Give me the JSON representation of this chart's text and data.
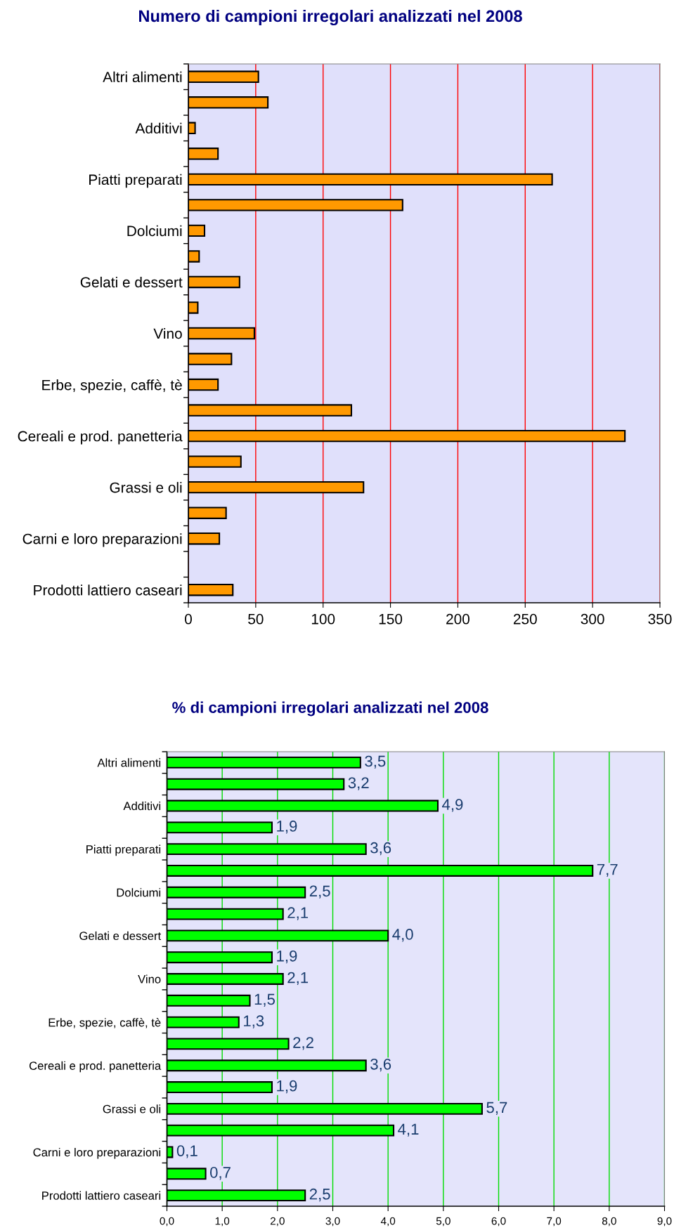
{
  "chart_data": [
    {
      "type": "bar",
      "orientation": "horizontal",
      "title": "Numero di campioni irregolari analizzati nel 2008",
      "categories": [
        "Altri alimenti",
        null,
        "Additivi",
        null,
        "Piatti preparati",
        null,
        "Dolciumi",
        null,
        "Gelati e dessert",
        null,
        "Vino",
        null,
        "Erbe, spezie, caffè, tè",
        null,
        "Cereali e prod. panetteria",
        null,
        "Grassi e oli",
        null,
        "Carni e loro preparazioni",
        null,
        "Prodotti lattiero caseari"
      ],
      "values": [
        52,
        59,
        5,
        22,
        270,
        159,
        12,
        8,
        38,
        7,
        49,
        32,
        22,
        121,
        324,
        39,
        130,
        28,
        23,
        null,
        33
      ],
      "color": "#ff9900",
      "xlim": [
        0,
        350
      ],
      "xticks": [
        0,
        50,
        100,
        150,
        200,
        250,
        300,
        350
      ],
      "grid": "x"
    },
    {
      "type": "bar",
      "orientation": "horizontal",
      "title": "% di campioni irregolari analizzati nel 2008",
      "categories": [
        "Altri alimenti",
        null,
        "Additivi",
        null,
        "Piatti preparati",
        null,
        "Dolciumi",
        null,
        "Gelati e dessert",
        null,
        "Vino",
        null,
        "Erbe, spezie, caffè, tè",
        null,
        "Cereali e prod. panetteria",
        null,
        "Grassi e oli",
        null,
        "Carni e loro preparazioni",
        null,
        "Prodotti lattiero caseari"
      ],
      "values": [
        3.5,
        3.2,
        4.9,
        1.9,
        3.6,
        7.7,
        2.5,
        2.1,
        4.0,
        1.9,
        2.1,
        1.5,
        1.3,
        2.2,
        3.6,
        1.9,
        5.7,
        4.1,
        0.1,
        0.7,
        2.5
      ],
      "value_labels": [
        "3,5",
        "3,2",
        "4,9",
        "1,9",
        "3,6",
        "7,7",
        "2,5",
        "2,1",
        "4,0",
        "1,9",
        "2,1",
        "1,5",
        "1,3",
        "2,2",
        "3,6",
        "1,9",
        "5,7",
        "4,1",
        "0,1",
        "0,7",
        "2,5"
      ],
      "color": "#00ff00",
      "xlim": [
        0,
        9
      ],
      "xticks": [
        {
          "value": 0,
          "label": "0,0"
        },
        {
          "value": 1,
          "label": "1,0"
        },
        {
          "value": 2,
          "label": "2,0"
        },
        {
          "value": 3,
          "label": "3,0"
        },
        {
          "value": 4,
          "label": "4,0"
        },
        {
          "value": 5,
          "label": "5,0"
        },
        {
          "value": 6,
          "label": "6,0"
        },
        {
          "value": 7,
          "label": "7,0"
        },
        {
          "value": 8,
          "label": "8,0"
        },
        {
          "value": 9,
          "label": "9,0"
        }
      ],
      "grid": "x"
    }
  ]
}
